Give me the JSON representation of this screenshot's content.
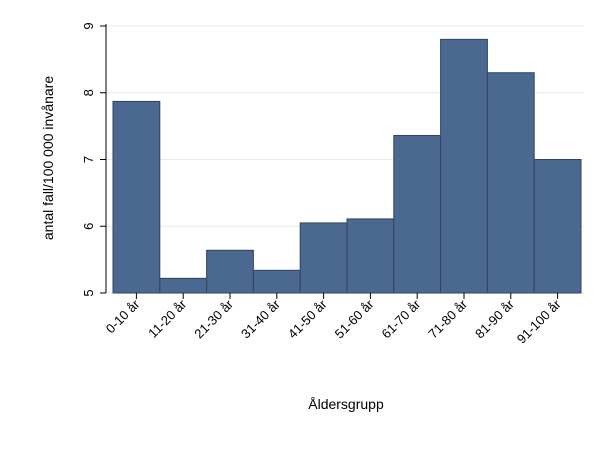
{
  "chart_data": {
    "type": "bar",
    "title": "",
    "xlabel": "Åldersgrupp",
    "ylabel": "antal fall/100 000 invånare",
    "categories": [
      "0-10 år",
      "11-20 år",
      "21-30 år",
      "31-40 år",
      "41-50 år",
      "51-60 år",
      "61-70 år",
      "71-80 år",
      "81-90 år",
      "91-100 år"
    ],
    "values": [
      7.87,
      5.22,
      5.64,
      5.34,
      6.05,
      6.11,
      7.36,
      8.8,
      8.3,
      7.0
    ],
    "ylim": [
      5,
      9
    ],
    "yticks": [
      5,
      6,
      7,
      8,
      9
    ],
    "grid": true,
    "legend": "none",
    "colors": {
      "bar_fill": "#4a6890",
      "bar_stroke": "#2e4561",
      "grid": "#e6eaee",
      "axis": "#000000"
    }
  }
}
